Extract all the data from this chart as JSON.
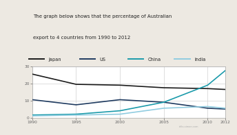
{
  "title_line1": "The graph below shows that the percentage of Australian",
  "title_line2": "export to 4 countries from 1990 to 2012",
  "years": [
    1990,
    1995,
    2000,
    2005,
    2010,
    2012
  ],
  "japan": [
    25.5,
    19.5,
    19.0,
    17.5,
    17.0,
    16.5
  ],
  "us": [
    10.5,
    7.5,
    10.5,
    9.0,
    5.5,
    5.0
  ],
  "china": [
    1.5,
    2.0,
    4.0,
    9.0,
    19.0,
    27.5
  ],
  "india": [
    1.0,
    1.5,
    2.0,
    5.5,
    6.5,
    5.5
  ],
  "japan_color": "#1a1a1a",
  "us_color": "#1e3a5f",
  "china_color": "#1a9aaa",
  "india_color": "#90cce0",
  "bg_color": "#ede9e2",
  "plot_bg": "#ffffff",
  "ylim": [
    0,
    30
  ],
  "yticks": [
    0,
    10,
    20,
    30
  ],
  "xticks": [
    1990,
    1995,
    2000,
    2005,
    2010,
    2012
  ],
  "legend_labels": [
    "Japan",
    "US",
    "China",
    "India"
  ],
  "accent_color": "#2e4a7a",
  "grid_color": "#d0d0d0",
  "tick_color": "#666666",
  "line_width": 1.2
}
